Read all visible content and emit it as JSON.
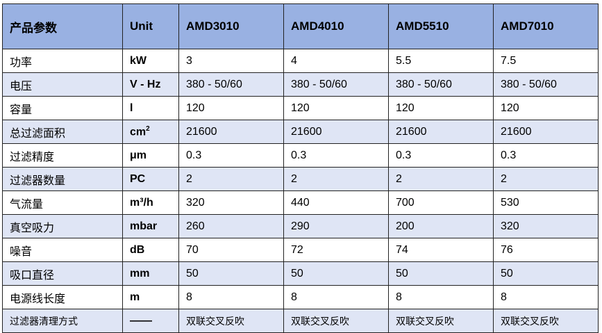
{
  "header": {
    "param": "产品参数",
    "unit": "Unit",
    "models": [
      "AMD3010",
      "AMD4010",
      "AMD5510",
      "AMD7010"
    ]
  },
  "rows": [
    {
      "param": "功率",
      "unit": "kW",
      "values": [
        "3",
        "4",
        "5.5",
        "7.5"
      ]
    },
    {
      "param": "电压",
      "unit": "V - Hz",
      "values": [
        "380 - 50/60",
        "380 - 50/60",
        "380 - 50/60",
        "380 - 50/60"
      ]
    },
    {
      "param": "容量",
      "unit": "l",
      "values": [
        "120",
        "120",
        "120",
        "120"
      ]
    },
    {
      "param": "总过滤面积",
      "unit": "cm",
      "unit_sup": "2",
      "values": [
        "21600",
        "21600",
        "21600",
        "21600"
      ]
    },
    {
      "param": "过滤精度",
      "unit": "μm",
      "values": [
        "0.3",
        "0.3",
        "0.3",
        "0.3"
      ]
    },
    {
      "param": "过滤器数量",
      "unit": "PC",
      "values": [
        "2",
        "2",
        "2",
        "2"
      ]
    },
    {
      "param": "气流量",
      "unit": "m³/h",
      "values": [
        "320",
        "440",
        "700",
        "530"
      ]
    },
    {
      "param": "真空吸力",
      "unit": "mbar",
      "values": [
        "260",
        "290",
        "200",
        "320"
      ]
    },
    {
      "param": "噪音",
      "unit": "dB",
      "values": [
        "70",
        "72",
        "74",
        "76"
      ]
    },
    {
      "param": "吸口直径",
      "unit": "mm",
      "values": [
        "50",
        "50",
        "50",
        "50"
      ]
    },
    {
      "param": "电源线长度",
      "unit": "m",
      "values": [
        "8",
        "8",
        "8",
        "8"
      ]
    },
    {
      "param": "过滤器清理方式",
      "unit": "——",
      "values": [
        "双联交叉反吹",
        "双联交叉反吹",
        "双联交叉反吹",
        "双联交叉反吹"
      ]
    }
  ]
}
